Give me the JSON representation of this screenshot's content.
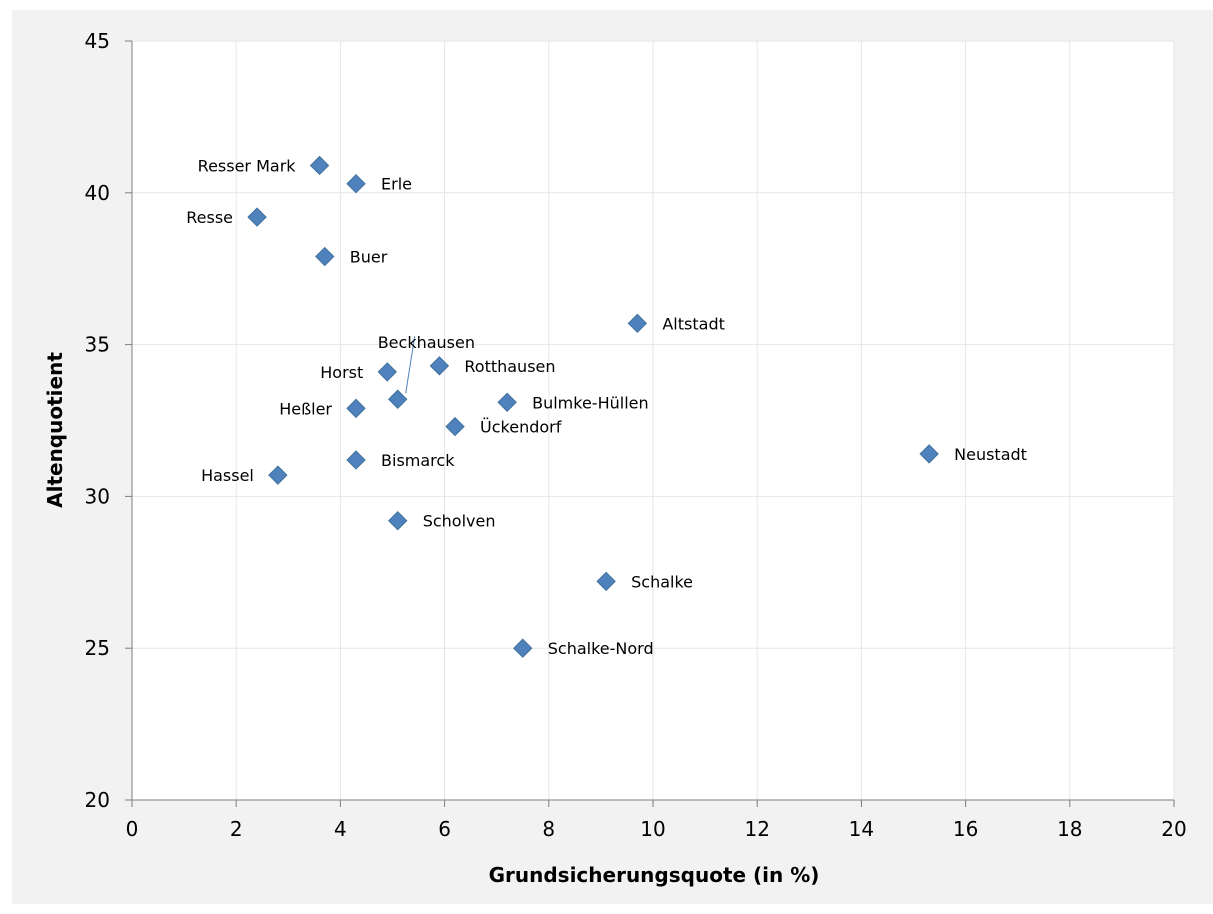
{
  "chart_data": {
    "type": "scatter",
    "title": "",
    "xlabel": "Grundsicherungsquote (in %)",
    "ylabel": "Altenquotient",
    "xlim": [
      0,
      20
    ],
    "ylim": [
      20,
      45
    ],
    "x_ticks": [
      0,
      2,
      4,
      6,
      8,
      10,
      12,
      14,
      16,
      18,
      20
    ],
    "y_ticks": [
      20,
      25,
      30,
      35,
      40,
      45
    ],
    "grid": true,
    "marker_color": "#4f81bd",
    "points": [
      {
        "label": "Resser Mark",
        "x": 3.6,
        "y": 40.9
      },
      {
        "label": "Erle",
        "x": 4.3,
        "y": 40.3
      },
      {
        "label": "Resse",
        "x": 2.4,
        "y": 39.2
      },
      {
        "label": "Buer",
        "x": 3.7,
        "y": 37.9
      },
      {
        "label": "Altstadt",
        "x": 9.7,
        "y": 35.7
      },
      {
        "label": "Rotthausen",
        "x": 5.9,
        "y": 34.3
      },
      {
        "label": "Horst",
        "x": 4.9,
        "y": 34.1
      },
      {
        "label": "Beckhausen",
        "x": 5.1,
        "y": 33.2
      },
      {
        "label": "Bulmke-Hüllen",
        "x": 7.2,
        "y": 33.1
      },
      {
        "label": "Heßler",
        "x": 4.3,
        "y": 32.9
      },
      {
        "label": "Ückendorf",
        "x": 6.2,
        "y": 32.3
      },
      {
        "label": "Neustadt",
        "x": 15.3,
        "y": 31.4
      },
      {
        "label": "Bismarck",
        "x": 4.3,
        "y": 31.2
      },
      {
        "label": "Hassel",
        "x": 2.8,
        "y": 30.7
      },
      {
        "label": "Scholven",
        "x": 5.1,
        "y": 29.2
      },
      {
        "label": "Schalke",
        "x": 9.1,
        "y": 27.2
      },
      {
        "label": "Schalke-Nord",
        "x": 7.5,
        "y": 25.0
      }
    ]
  }
}
